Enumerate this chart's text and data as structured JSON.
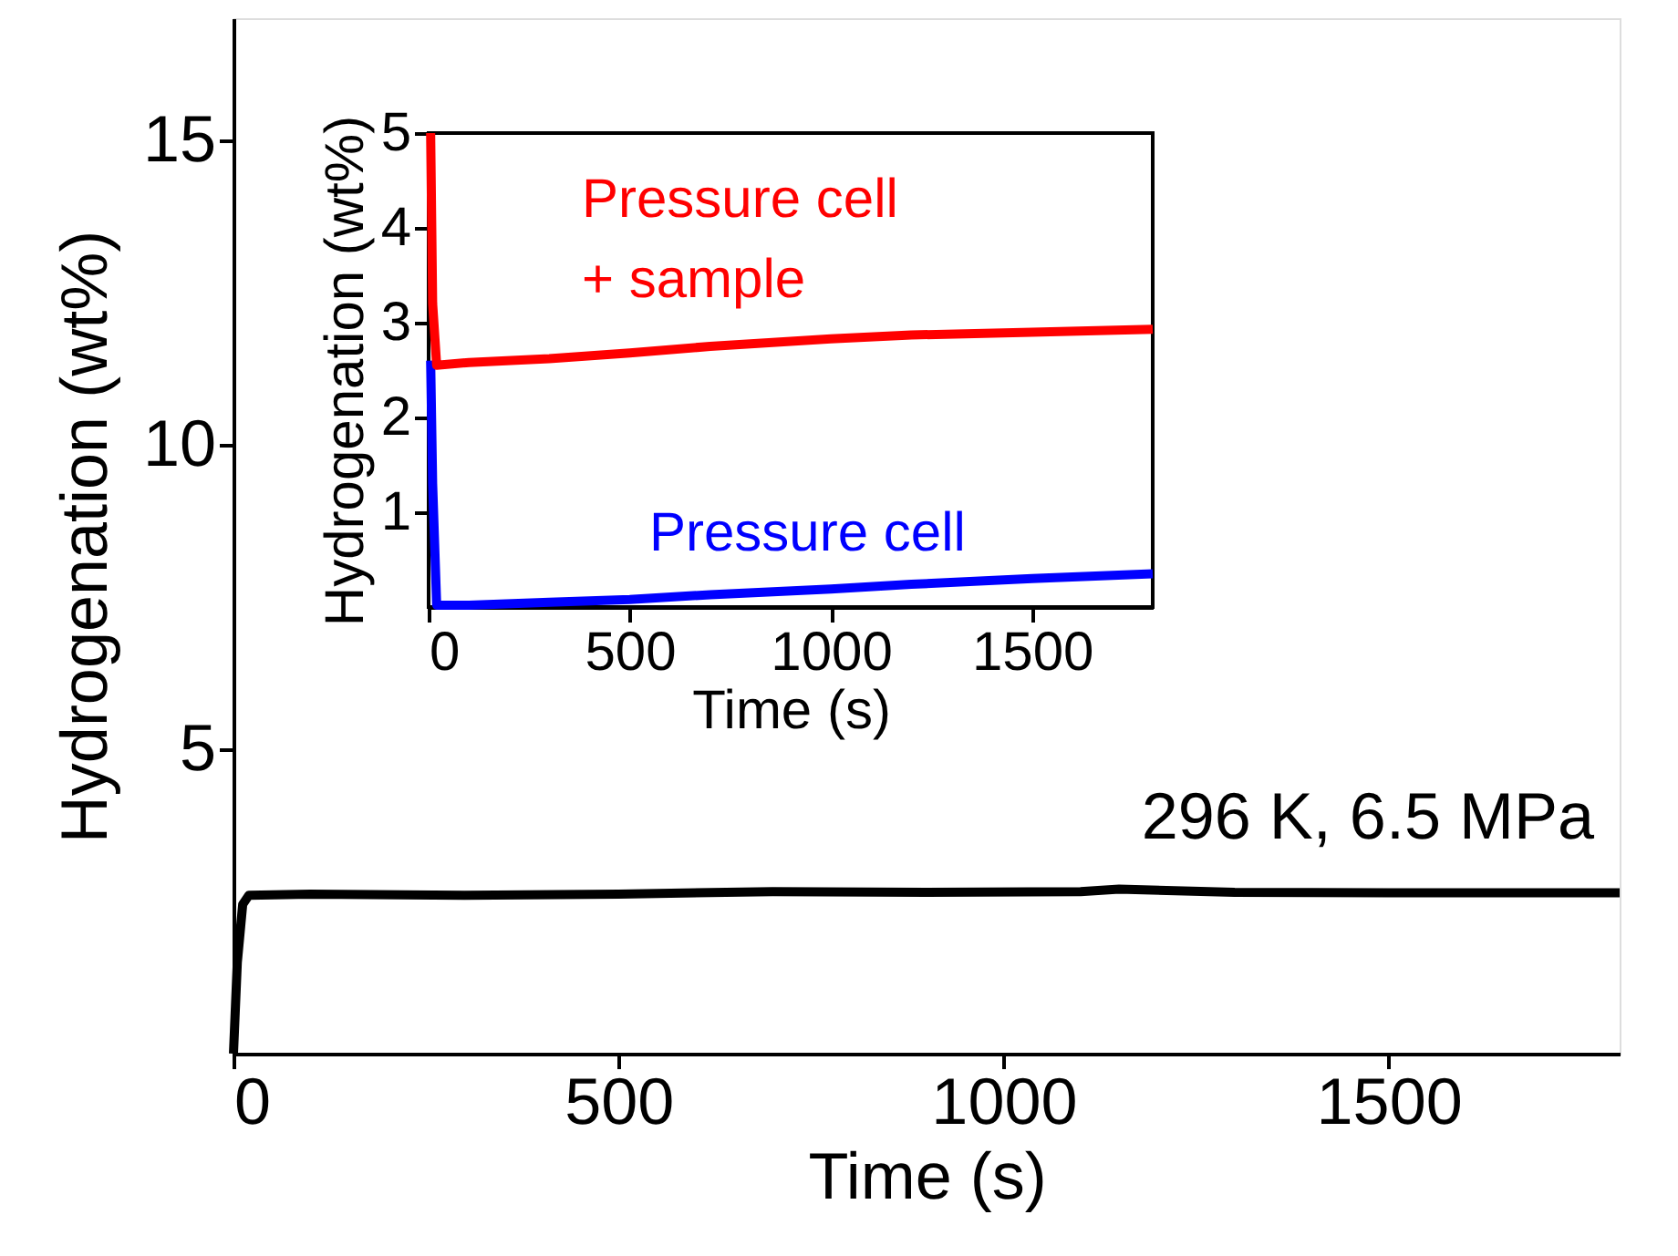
{
  "chart_data": [
    {
      "type": "line",
      "xlabel": "Time (s)",
      "ylabel": "Hydrogenation (wt%)",
      "xlim": [
        0,
        1800
      ],
      "ylim": [
        0,
        17
      ],
      "xticks": [
        0,
        500,
        1000,
        1500
      ],
      "yticks": [
        5,
        10,
        15
      ],
      "grid": false,
      "annotations": [
        "296 K, 6.5 MPa"
      ],
      "series": [
        {
          "color": "#000000",
          "x": [
            0,
            5,
            12,
            20,
            100,
            300,
            500,
            700,
            900,
            1100,
            1150,
            1300,
            1500,
            1700,
            1800
          ],
          "values": [
            0,
            1.5,
            2.45,
            2.6,
            2.62,
            2.6,
            2.62,
            2.66,
            2.65,
            2.66,
            2.7,
            2.65,
            2.64,
            2.64,
            2.64
          ]
        }
      ]
    },
    {
      "type": "line",
      "xlabel": "Time (s)",
      "ylabel": "Hydrogenation (wt%)",
      "xlim": [
        0,
        1800
      ],
      "ylim": [
        0,
        5
      ],
      "xticks": [
        0,
        500,
        1000,
        1500
      ],
      "yticks": [
        1,
        2,
        3,
        4,
        5
      ],
      "grid": false,
      "series": [
        {
          "name": "Pressure cell",
          "color": "#0000ff",
          "x": [
            5,
            10,
            20,
            100,
            300,
            500,
            700,
            1000,
            1200,
            1500,
            1800
          ],
          "values": [
            2.6,
            1.3,
            0.02,
            0.02,
            0.05,
            0.08,
            0.13,
            0.19,
            0.24,
            0.3,
            0.35
          ]
        },
        {
          "name": "Pressure cell\n+ sample",
          "color": "#ff0000",
          "x": [
            5,
            10,
            20,
            100,
            300,
            500,
            700,
            1000,
            1200,
            1500,
            1800
          ],
          "values": [
            5,
            3.2,
            2.55,
            2.58,
            2.62,
            2.68,
            2.75,
            2.83,
            2.87,
            2.9,
            2.93
          ]
        }
      ]
    }
  ]
}
